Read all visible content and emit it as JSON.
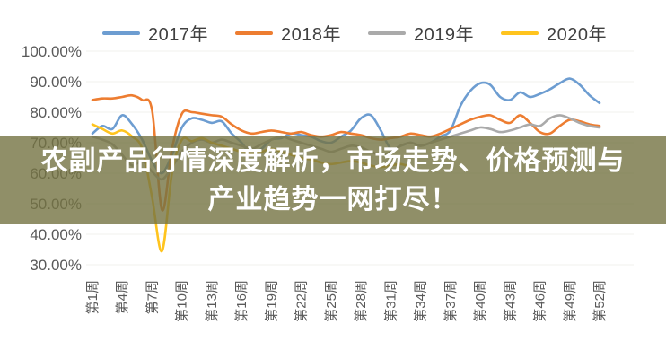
{
  "page": {
    "background_color": "#ffffff",
    "axis_label_color": "#595959",
    "legend_label_color": "#404040",
    "gridline_color": "#f1f1ee"
  },
  "legend": {
    "items": [
      {
        "label": "2017年",
        "color": "#6d9dd1"
      },
      {
        "label": "2018年",
        "color": "#ed7d31"
      },
      {
        "label": "2019年",
        "color": "#aaaaaa"
      },
      {
        "label": "2020年",
        "color": "#ffc41e"
      }
    ]
  },
  "overlay": {
    "band_color": "rgba(116,115,66,0.80)",
    "text_color": "#ffffff",
    "line1": "农副产品行情深度解析，市场走势、价格预测与",
    "line2": "产业趋势一网打尽！"
  },
  "chart_data": {
    "type": "line",
    "title": "",
    "xlabel": "",
    "ylabel": "",
    "ylim": [
      30,
      100
    ],
    "weeks": 52,
    "grid": "horizontal-faint",
    "legend_position": "top-center",
    "y_ticks": [
      "100.00%",
      "90.00%",
      "80.00%",
      "70.00%",
      "60.00%",
      "50.00%",
      "40.00%",
      "30.00%"
    ],
    "x_tick_step": 3,
    "x_tick_labels": [
      "第1周",
      "第4周",
      "第7周",
      "第10周",
      "第13周",
      "第16周",
      "第19周",
      "第22周",
      "第25周",
      "第28周",
      "第31周",
      "第34周",
      "第37周",
      "第40周",
      "第43周",
      "第46周",
      "第49周",
      "第52周"
    ],
    "series": [
      {
        "name": "2017年",
        "color": "#6d9dd1",
        "values": [
          73,
          75.5,
          74.5,
          79,
          76,
          71,
          64,
          60,
          66,
          75,
          78,
          77.5,
          76.5,
          77,
          73,
          70,
          66,
          68,
          71,
          71.5,
          73,
          72.5,
          72,
          70.5,
          70,
          72,
          74,
          78,
          79,
          74,
          68,
          69,
          70,
          69,
          70,
          72,
          74,
          82,
          87,
          89.5,
          89,
          85,
          84,
          86.5,
          85,
          86,
          87.5,
          89.5,
          91,
          89,
          85.5,
          83
        ]
      },
      {
        "name": "2018年",
        "color": "#ed7d31",
        "values": [
          84,
          84.5,
          84.5,
          85,
          85.5,
          84,
          80.5,
          48,
          68,
          79.5,
          80,
          79.5,
          79,
          78.5,
          76,
          74,
          73,
          73.5,
          74,
          73.5,
          73,
          73.5,
          72.5,
          72,
          72.5,
          73.5,
          73,
          72.5,
          71.5,
          71,
          71.5,
          72,
          73,
          72.5,
          72,
          73,
          74.5,
          76,
          77.5,
          78.5,
          79,
          77.5,
          76.5,
          79,
          76.5,
          73.5,
          73,
          75.5,
          77.5,
          77,
          76,
          75.5
        ]
      },
      {
        "name": "2019年",
        "color": "#aaaaaa",
        "values": [
          72,
          71,
          69.5,
          66,
          62.5,
          64,
          60.5,
          58,
          62,
          67,
          70,
          71,
          70,
          71,
          70,
          69,
          68,
          69.5,
          71,
          72,
          71,
          70,
          69,
          68,
          67,
          68,
          69,
          68.5,
          67,
          66,
          67,
          69,
          70,
          69,
          70,
          71,
          72,
          73,
          74,
          75,
          74.5,
          73.5,
          74,
          75,
          76,
          75.5,
          78,
          79,
          78,
          76.5,
          75.5,
          75
        ]
      },
      {
        "name": "2020年",
        "color": "#ffc41e",
        "values": [
          76,
          74.5,
          73,
          74,
          72,
          68,
          52,
          34.5,
          60,
          71,
          70.5,
          71.5,
          70,
          69,
          68,
          67,
          66.5,
          67,
          68,
          67,
          66,
          65,
          64.5,
          63.5,
          63,
          63.5,
          64,
          63.5,
          62.5,
          62,
          62.5,
          63,
          62,
          null,
          null,
          null,
          null,
          null,
          null,
          null,
          null,
          null,
          null,
          null,
          null,
          null,
          null,
          null,
          null,
          null,
          null,
          null
        ]
      }
    ]
  }
}
